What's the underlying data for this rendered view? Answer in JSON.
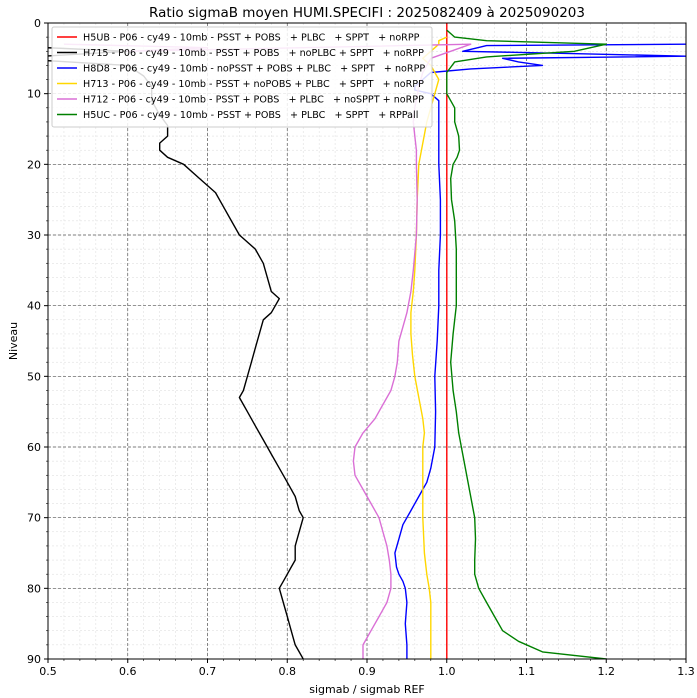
{
  "chart_data": {
    "type": "line",
    "title": "Ratio sigmaB moyen HUMI.SPECIFI : 2025082409 à 2025090203",
    "xlabel": "sigmab / sigmab REF",
    "ylabel": "Niveau",
    "xlim": [
      0.5,
      1.3
    ],
    "ylim": [
      90,
      0
    ],
    "y_inverted": true,
    "xticks": [
      "0.5",
      "0.6",
      "0.7",
      "0.8",
      "0.9",
      "1.0",
      "1.1",
      "1.2",
      "1.3"
    ],
    "yticks": [
      "0",
      "10",
      "20",
      "30",
      "40",
      "50",
      "60",
      "70",
      "80",
      "90"
    ],
    "grid": true,
    "legend_position": "upper-left",
    "series": [
      {
        "name": "H5UB - P06 - cy49 - 10mb - PSST + POBS   + PLBC   + SPPT   + noRPP",
        "color": "#ff0000",
        "points": [
          [
            1.0,
            0
          ],
          [
            1.0,
            10
          ],
          [
            1.0,
            20
          ],
          [
            1.0,
            30
          ],
          [
            1.0,
            40
          ],
          [
            1.0,
            50
          ],
          [
            1.0,
            60
          ],
          [
            1.0,
            70
          ],
          [
            1.0,
            80
          ],
          [
            1.0,
            90
          ]
        ]
      },
      {
        "name": "H715 - P06 - cy49 - 10mb - PSST + POBS   + noPLBC + SPPT   + noRPP",
        "color": "#000000",
        "points": [
          [
            0.4,
            3
          ],
          [
            0.6,
            4
          ],
          [
            0.45,
            5
          ],
          [
            0.6,
            6
          ],
          [
            0.62,
            7.5
          ],
          [
            0.63,
            9
          ],
          [
            0.63,
            11
          ],
          [
            0.64,
            13
          ],
          [
            0.65,
            14.5
          ],
          [
            0.65,
            16
          ],
          [
            0.64,
            17
          ],
          [
            0.64,
            18
          ],
          [
            0.65,
            19
          ],
          [
            0.67,
            20
          ],
          [
            0.69,
            22
          ],
          [
            0.71,
            24
          ],
          [
            0.72,
            26
          ],
          [
            0.73,
            28
          ],
          [
            0.74,
            30
          ],
          [
            0.76,
            32
          ],
          [
            0.77,
            34
          ],
          [
            0.775,
            36
          ],
          [
            0.78,
            38
          ],
          [
            0.79,
            39
          ],
          [
            0.785,
            40
          ],
          [
            0.78,
            41
          ],
          [
            0.77,
            42
          ],
          [
            0.765,
            44
          ],
          [
            0.76,
            46
          ],
          [
            0.755,
            48
          ],
          [
            0.75,
            50
          ],
          [
            0.745,
            52
          ],
          [
            0.74,
            53
          ],
          [
            0.745,
            54
          ],
          [
            0.75,
            55
          ],
          [
            0.76,
            57
          ],
          [
            0.77,
            59
          ],
          [
            0.78,
            61
          ],
          [
            0.79,
            63
          ],
          [
            0.8,
            65
          ],
          [
            0.81,
            67
          ],
          [
            0.815,
            69
          ],
          [
            0.82,
            70
          ],
          [
            0.815,
            72
          ],
          [
            0.81,
            74
          ],
          [
            0.81,
            76
          ],
          [
            0.805,
            77
          ],
          [
            0.8,
            78
          ],
          [
            0.795,
            79
          ],
          [
            0.79,
            80
          ],
          [
            0.795,
            82
          ],
          [
            0.8,
            84
          ],
          [
            0.805,
            86
          ],
          [
            0.81,
            88
          ],
          [
            0.815,
            89
          ],
          [
            0.82,
            90
          ]
        ]
      },
      {
        "name": "H8D8 - P06 - cy49 - 10mb - noPSST + POBS + PLBC   + SPPT   + noRPP",
        "color": "#0000ff",
        "points": [
          [
            1.3,
            3
          ],
          [
            1.05,
            3.2
          ],
          [
            1.02,
            4
          ],
          [
            1.15,
            4.3
          ],
          [
            1.3,
            4.7
          ],
          [
            1.07,
            5
          ],
          [
            1.09,
            5.5
          ],
          [
            1.12,
            6
          ],
          [
            1.03,
            6.5
          ],
          [
            0.98,
            7
          ],
          [
            0.97,
            8
          ],
          [
            0.96,
            9
          ],
          [
            0.96,
            9.5
          ],
          [
            0.98,
            10
          ],
          [
            0.99,
            11
          ],
          [
            0.99,
            12
          ],
          [
            0.99,
            14
          ],
          [
            0.99,
            16
          ],
          [
            0.99,
            20
          ],
          [
            0.992,
            25
          ],
          [
            0.992,
            30
          ],
          [
            0.99,
            35
          ],
          [
            0.99,
            40
          ],
          [
            0.988,
            45
          ],
          [
            0.985,
            50
          ],
          [
            0.986,
            55
          ],
          [
            0.985,
            60
          ],
          [
            0.98,
            63
          ],
          [
            0.975,
            65
          ],
          [
            0.965,
            67
          ],
          [
            0.955,
            69
          ],
          [
            0.945,
            71
          ],
          [
            0.94,
            73
          ],
          [
            0.935,
            75
          ],
          [
            0.937,
            77
          ],
          [
            0.94,
            78
          ],
          [
            0.945,
            79
          ],
          [
            0.948,
            80
          ],
          [
            0.95,
            82
          ],
          [
            0.948,
            85
          ],
          [
            0.95,
            88
          ],
          [
            0.95,
            90
          ]
        ]
      },
      {
        "name": "H713 - P06 - cy49 - 10mb - PSST + noPOBS + PLBC   + SPPT   + noRPP",
        "color": "#ffd700",
        "points": [
          [
            1.0,
            2
          ],
          [
            0.99,
            2.5
          ],
          [
            0.99,
            3
          ],
          [
            0.98,
            4
          ],
          [
            0.97,
            5
          ],
          [
            0.98,
            6
          ],
          [
            0.99,
            8
          ],
          [
            0.985,
            10
          ],
          [
            0.98,
            12
          ],
          [
            0.975,
            14
          ],
          [
            0.97,
            17
          ],
          [
            0.965,
            20
          ],
          [
            0.963,
            25
          ],
          [
            0.962,
            30
          ],
          [
            0.96,
            35
          ],
          [
            0.958,
            38
          ],
          [
            0.955,
            41
          ],
          [
            0.955,
            44
          ],
          [
            0.957,
            47
          ],
          [
            0.96,
            50
          ],
          [
            0.965,
            53
          ],
          [
            0.97,
            56
          ],
          [
            0.972,
            58
          ],
          [
            0.97,
            60
          ],
          [
            0.97,
            65
          ],
          [
            0.97,
            70
          ],
          [
            0.972,
            75
          ],
          [
            0.975,
            78
          ],
          [
            0.978,
            80
          ],
          [
            0.98,
            82
          ],
          [
            0.98,
            86
          ],
          [
            0.98,
            90
          ]
        ]
      },
      {
        "name": "H712 - P06 - cy49 - 10mb - PSST + POBS   + PLBC   + noSPPT + noRPP",
        "color": "#da70d6",
        "points": [
          [
            0.52,
            3
          ],
          [
            0.7,
            3.5
          ],
          [
            0.6,
            4
          ],
          [
            1.03,
            3
          ],
          [
            0.98,
            5
          ],
          [
            0.97,
            7
          ],
          [
            0.965,
            9
          ],
          [
            0.96,
            12
          ],
          [
            0.958,
            14
          ],
          [
            0.96,
            16
          ],
          [
            0.962,
            18
          ],
          [
            0.962,
            20
          ],
          [
            0.963,
            25
          ],
          [
            0.962,
            30
          ],
          [
            0.958,
            35
          ],
          [
            0.955,
            38
          ],
          [
            0.95,
            41
          ],
          [
            0.945,
            43
          ],
          [
            0.94,
            45
          ],
          [
            0.938,
            48
          ],
          [
            0.935,
            50
          ],
          [
            0.93,
            52
          ],
          [
            0.92,
            54
          ],
          [
            0.91,
            56
          ],
          [
            0.895,
            58
          ],
          [
            0.885,
            60
          ],
          [
            0.883,
            62
          ],
          [
            0.885,
            64
          ],
          [
            0.895,
            66
          ],
          [
            0.905,
            68
          ],
          [
            0.915,
            70
          ],
          [
            0.92,
            72
          ],
          [
            0.925,
            74
          ],
          [
            0.928,
            76
          ],
          [
            0.93,
            78
          ],
          [
            0.93,
            80
          ],
          [
            0.925,
            82
          ],
          [
            0.915,
            84
          ],
          [
            0.905,
            86
          ],
          [
            0.895,
            88
          ],
          [
            0.895,
            90
          ]
        ]
      },
      {
        "name": "H5UC - P06 - cy49 - 10mb - PSST + POBS   + PLBC   + SPPT   + RPPall",
        "color": "#008000",
        "points": [
          [
            1.0,
            1
          ],
          [
            1.01,
            2
          ],
          [
            1.05,
            2.5
          ],
          [
            1.2,
            3
          ],
          [
            1.16,
            4
          ],
          [
            1.05,
            4.8
          ],
          [
            1.01,
            5.5
          ],
          [
            1.0,
            7
          ],
          [
            1.0,
            9
          ],
          [
            1.0,
            10
          ],
          [
            1.005,
            11
          ],
          [
            1.01,
            12
          ],
          [
            1.01,
            14
          ],
          [
            1.015,
            16
          ],
          [
            1.016,
            18
          ],
          [
            1.013,
            19
          ],
          [
            1.008,
            20
          ],
          [
            1.005,
            22
          ],
          [
            1.006,
            25
          ],
          [
            1.01,
            28
          ],
          [
            1.012,
            32
          ],
          [
            1.012,
            36
          ],
          [
            1.012,
            40
          ],
          [
            1.008,
            44
          ],
          [
            1.005,
            48
          ],
          [
            1.008,
            52
          ],
          [
            1.012,
            55
          ],
          [
            1.015,
            58
          ],
          [
            1.02,
            61
          ],
          [
            1.025,
            64
          ],
          [
            1.03,
            67
          ],
          [
            1.035,
            70
          ],
          [
            1.036,
            73
          ],
          [
            1.035,
            76
          ],
          [
            1.035,
            78
          ],
          [
            1.04,
            80
          ],
          [
            1.05,
            82
          ],
          [
            1.06,
            84
          ],
          [
            1.07,
            86
          ],
          [
            1.09,
            87.5
          ],
          [
            1.12,
            89
          ],
          [
            1.2,
            90
          ]
        ]
      }
    ]
  }
}
